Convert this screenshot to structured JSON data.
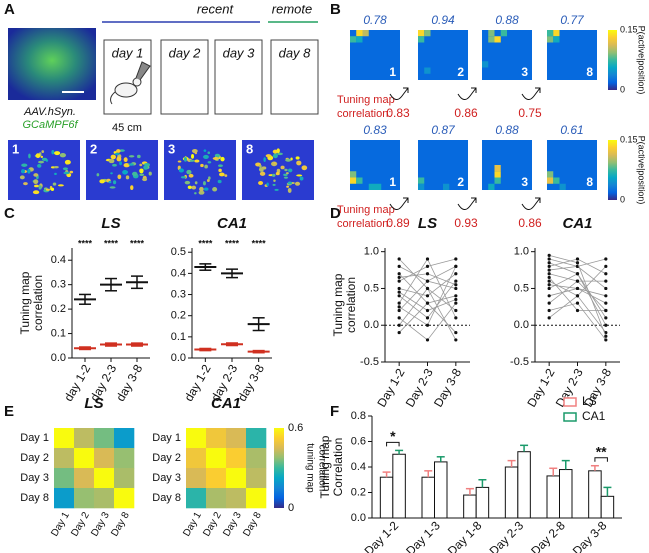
{
  "panel_labels": [
    "A",
    "B",
    "C",
    "D",
    "E",
    "F"
  ],
  "panel_a": {
    "section_labels": [
      "recent",
      "remote"
    ],
    "days": [
      "day 1",
      "day 2",
      "day 3",
      "day 8"
    ],
    "scale": "45 cm",
    "virus": "AAV.hSyn.",
    "indicator": "GCaMPF6f",
    "fov_labels": [
      "1",
      "2",
      "3",
      "8"
    ]
  },
  "panel_b": {
    "rows": [
      {
        "peaks": [
          0.78,
          0.94,
          0.88,
          0.77
        ],
        "days": [
          "1",
          "2",
          "3",
          "8"
        ],
        "correlation_label": [
          "Tuning map",
          "correlation:"
        ],
        "correlations": [
          0.83,
          0.86,
          0.75
        ],
        "colorbar_ticks": [
          0.15,
          0
        ],
        "colorbar_label": "P(active|position)"
      },
      {
        "peaks": [
          0.83,
          0.87,
          0.88,
          0.61
        ],
        "days": [
          "1",
          "2",
          "3",
          "8"
        ],
        "correlation_label": [
          "Tuning map",
          "correlation:"
        ],
        "correlations": [
          0.89,
          0.93,
          0.86
        ],
        "colorbar_ticks": [
          0.15,
          0
        ],
        "colorbar_label": "P(active|position)"
      }
    ]
  },
  "chart_data": [
    {
      "type": "errorbar",
      "title": "LS",
      "ylabel": [
        "Tuning map",
        "correlation"
      ],
      "categories": [
        "day 1-2",
        "day 2-3",
        "day 3-8"
      ],
      "series": [
        {
          "color": "#111111",
          "values": [
            0.24,
            0.3,
            0.31
          ],
          "errors": [
            0.02,
            0.025,
            0.025
          ]
        },
        {
          "color": "#d03020",
          "values": [
            0.04,
            0.055,
            0.055
          ],
          "errors": [
            0.005,
            0.006,
            0.006
          ]
        }
      ],
      "annotations": [
        "****",
        "****",
        "****"
      ],
      "ylim": [
        0,
        0.45
      ],
      "yticks": [
        {
          "value": 0,
          "label": "0.0"
        },
        0.1,
        0.2,
        0.3,
        0.4
      ]
    },
    {
      "type": "errorbar",
      "title": "CA1",
      "categories": [
        "day 1-2",
        "day 2-3",
        "day 3-8"
      ],
      "series": [
        {
          "color": "#111111",
          "values": [
            0.43,
            0.4,
            0.16
          ],
          "errors": [
            0.015,
            0.02,
            0.03
          ]
        },
        {
          "color": "#d03020",
          "values": [
            0.04,
            0.065,
            0.03
          ],
          "errors": [
            0.005,
            0.006,
            0.005
          ]
        }
      ],
      "annotations": [
        "****",
        "****",
        "****"
      ],
      "ylim": [
        0,
        0.52
      ],
      "yticks": [
        {
          "value": 0,
          "label": "0.0"
        },
        0.1,
        0.2,
        0.3,
        0.4,
        0.5
      ]
    },
    {
      "type": "paired",
      "title": "LS",
      "ylabel": [
        "Tuning map",
        "correlation"
      ],
      "categories": [
        "Day 1-2",
        "Day 2-3",
        "Day 3-8"
      ],
      "color": "#999999",
      "reference": 0,
      "series": [
        {
          "values": [
            0.9,
            0.5,
            0.2
          ]
        },
        {
          "values": [
            0.6,
            0.8,
            0.9
          ]
        },
        {
          "values": [
            0.4,
            0.1,
            0.6
          ]
        },
        {
          "values": [
            0.7,
            0.3,
            -0.1
          ]
        },
        {
          "values": [
            0.2,
            0.6,
            0.5
          ]
        },
        {
          "values": [
            0.1,
            -0.2,
            0.3
          ]
        },
        {
          "values": [
            0.5,
            0.4,
            0.7
          ]
        },
        {
          "values": [
            0.3,
            0.9,
            0.1
          ]
        },
        {
          "values": [
            -0.1,
            0.3,
            0.4
          ]
        },
        {
          "values": [
            0.8,
            0.6,
            0.8
          ]
        },
        {
          "values": [
            0.0,
            0.5,
            -0.2
          ]
        },
        {
          "values": [
            0.45,
            0.2,
            0.35
          ]
        },
        {
          "values": [
            0.65,
            0.7,
            0.55
          ]
        },
        {
          "values": [
            0.25,
            0.0,
            0.8
          ]
        }
      ],
      "ylim": [
        -0.5,
        1.05
      ],
      "yticks": [
        -0.5,
        {
          "value": 0,
          "label": "0.0"
        },
        0.5,
        {
          "value": 1,
          "label": "1.0"
        }
      ]
    },
    {
      "type": "paired",
      "title": "CA1",
      "categories": [
        "Day 1-2",
        "Day 2-3",
        "Day 3-8"
      ],
      "color": "#999999",
      "reference": 0,
      "series": [
        {
          "values": [
            0.9,
            0.8,
            0.5
          ]
        },
        {
          "values": [
            0.7,
            0.6,
            0.2
          ]
        },
        {
          "values": [
            0.5,
            0.7,
            0.0
          ]
        },
        {
          "values": [
            0.8,
            0.9,
            0.7
          ]
        },
        {
          "values": [
            0.6,
            0.4,
            -0.1
          ]
        },
        {
          "values": [
            0.4,
            0.5,
            0.3
          ]
        },
        {
          "values": [
            0.3,
            0.6,
            0.6
          ]
        },
        {
          "values": [
            0.85,
            0.7,
            0.1
          ]
        },
        {
          "values": [
            0.2,
            0.3,
            -0.2
          ]
        },
        {
          "values": [
            0.75,
            0.8,
            0.9
          ]
        },
        {
          "values": [
            0.55,
            0.5,
            0.4
          ]
        },
        {
          "values": [
            0.65,
            0.2,
            0.2
          ]
        },
        {
          "values": [
            0.1,
            0.4,
            0.8
          ]
        },
        {
          "values": [
            0.95,
            0.85,
            -0.15
          ]
        }
      ],
      "ylim": [
        -0.5,
        1.05
      ],
      "yticks": [
        -0.5,
        {
          "value": 0,
          "label": "0.0"
        },
        0.5,
        {
          "value": 1,
          "label": "1.0"
        }
      ]
    },
    {
      "type": "heatmap",
      "title": "LS",
      "categories": [
        "Day 1",
        "Day 2",
        "Day 3",
        "Day 8"
      ],
      "clim": [
        0,
        0.6
      ],
      "values": [
        [
          0.6,
          0.42,
          0.35,
          0.2
        ],
        [
          0.42,
          0.6,
          0.45,
          0.38
        ],
        [
          0.35,
          0.45,
          0.6,
          0.4
        ],
        [
          0.2,
          0.38,
          0.4,
          0.6
        ]
      ]
    },
    {
      "type": "heatmap",
      "title": "CA1",
      "categories": [
        "Day 1",
        "Day 2",
        "Day 3",
        "Day 8"
      ],
      "clim": [
        0,
        0.6
      ],
      "values": [
        [
          0.6,
          0.5,
          0.45,
          0.28
        ],
        [
          0.5,
          0.6,
          0.52,
          0.4
        ],
        [
          0.45,
          0.52,
          0.6,
          0.42
        ],
        [
          0.28,
          0.4,
          0.42,
          0.6
        ]
      ],
      "colorbar_ticks": [
        0.6,
        0
      ],
      "colorbar_label": [
        "tuning map",
        "correlation"
      ]
    },
    {
      "type": "bar",
      "ylabel": [
        "Tuning map",
        "Correlation"
      ],
      "categories": [
        "Day 1-2",
        "Day 1-3",
        "Day 1-8",
        "Day 2-3",
        "Day 2-8",
        "Day 3-8"
      ],
      "series": [
        {
          "name": "LS",
          "color": "#f08080",
          "values": [
            0.32,
            0.32,
            0.18,
            0.4,
            0.33,
            0.37
          ],
          "errors": [
            0.04,
            0.05,
            0.05,
            0.05,
            0.06,
            0.04
          ]
        },
        {
          "name": "CA1",
          "color": "#1a9a6a",
          "values": [
            0.5,
            0.44,
            0.24,
            0.52,
            0.38,
            0.17
          ],
          "errors": [
            0.03,
            0.04,
            0.06,
            0.05,
            0.07,
            0.07
          ]
        }
      ],
      "annotations": [
        {
          "x": "Day 1-2",
          "text": "*"
        },
        {
          "x": "Day 3-8",
          "text": "**"
        }
      ],
      "ylim": [
        0,
        0.8
      ],
      "yticks": [
        {
          "value": 0,
          "label": "0.0"
        },
        0.2,
        0.4,
        0.6,
        0.8
      ],
      "legend": "top-right"
    }
  ]
}
